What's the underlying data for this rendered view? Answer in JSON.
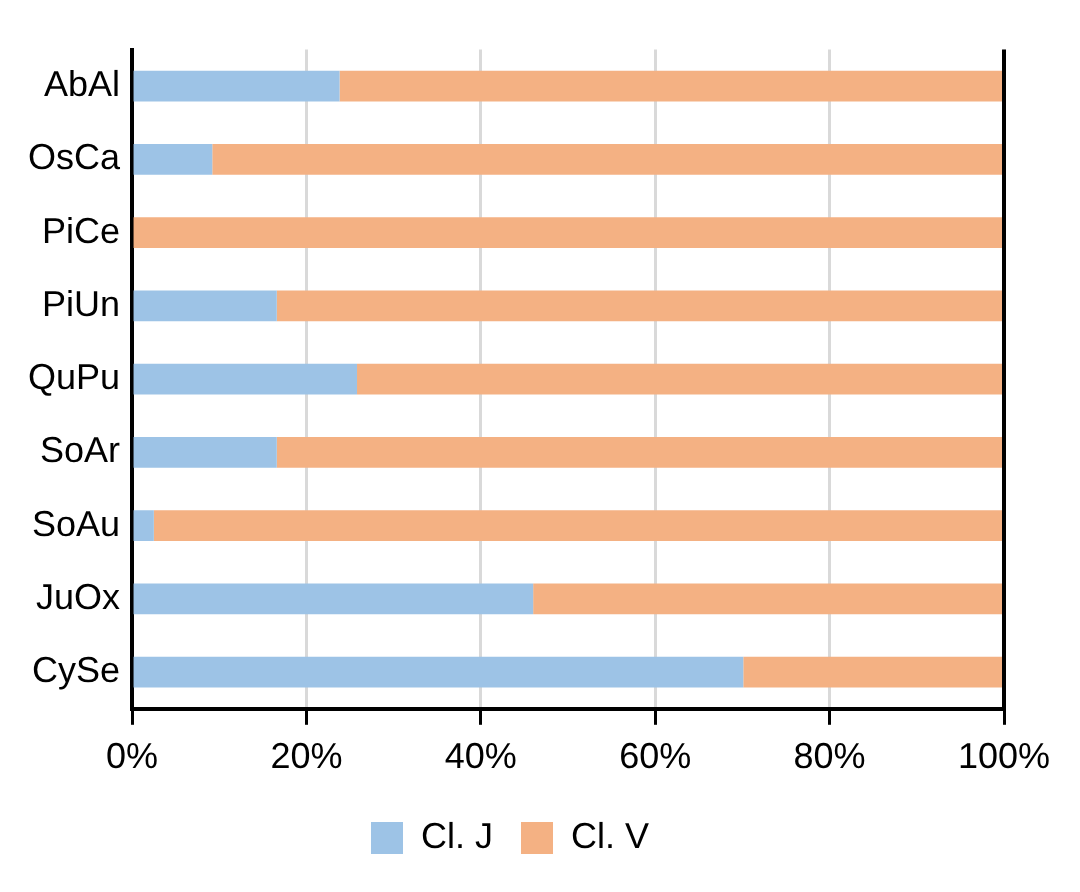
{
  "chart_data": {
    "type": "bar",
    "orientation": "horizontal",
    "stacked": true,
    "categories": [
      "AbAl",
      "OsCa",
      "PiCe",
      "PiUn",
      "QuPu",
      "SoAr",
      "SoAu",
      "JuOx",
      "CySe"
    ],
    "series": [
      {
        "name": "Cl. J",
        "color": "#9dc3e6",
        "values": [
          23.8,
          9.2,
          0,
          16.6,
          25.8,
          16.6,
          2.5,
          46.0,
          70.1
        ]
      },
      {
        "name": "Cl. V",
        "color": "#f4b183",
        "values": [
          76.2,
          90.8,
          100,
          83.4,
          74.2,
          83.4,
          97.5,
          54.0,
          29.9
        ]
      }
    ],
    "xlim": [
      0,
      100
    ],
    "xticks": [
      {
        "value": 0,
        "label": "0%"
      },
      {
        "value": 20,
        "label": "20%"
      },
      {
        "value": 40,
        "label": "40%"
      },
      {
        "value": 60,
        "label": "60%"
      },
      {
        "value": 80,
        "label": "80%"
      },
      {
        "value": 100,
        "label": "100%"
      }
    ],
    "grid": "x",
    "legend": "bottom"
  }
}
